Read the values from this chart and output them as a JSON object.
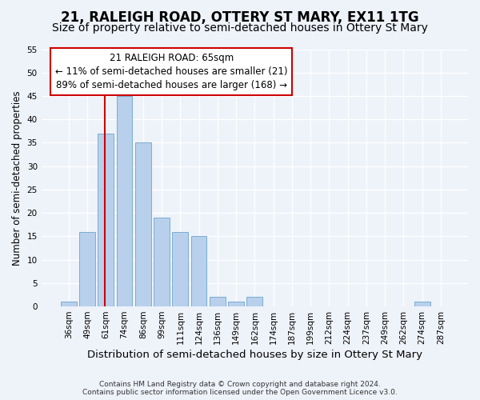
{
  "title": "21, RALEIGH ROAD, OTTERY ST MARY, EX11 1TG",
  "subtitle": "Size of property relative to semi-detached houses in Ottery St Mary",
  "xlabel": "Distribution of semi-detached houses by size in Ottery St Mary",
  "ylabel": "Number of semi-detached properties",
  "categories": [
    "36sqm",
    "49sqm",
    "61sqm",
    "74sqm",
    "86sqm",
    "99sqm",
    "111sqm",
    "124sqm",
    "136sqm",
    "149sqm",
    "162sqm",
    "174sqm",
    "187sqm",
    "199sqm",
    "212sqm",
    "224sqm",
    "237sqm",
    "249sqm",
    "262sqm",
    "274sqm",
    "287sqm"
  ],
  "values": [
    1,
    16,
    37,
    45,
    35,
    19,
    16,
    15,
    2,
    1,
    2,
    0,
    0,
    0,
    0,
    0,
    0,
    0,
    0,
    1,
    0
  ],
  "bar_color": "#b8d0eb",
  "bar_edge_color": "#7aadd4",
  "vline_color": "#cc0000",
  "vline_x": 1.95,
  "ylim": [
    0,
    55
  ],
  "yticks": [
    0,
    5,
    10,
    15,
    20,
    25,
    30,
    35,
    40,
    45,
    50,
    55
  ],
  "annotation_title": "21 RALEIGH ROAD: 65sqm",
  "annotation_line1": "← 11% of semi-detached houses are smaller (21)",
  "annotation_line2": "89% of semi-detached houses are larger (168) →",
  "annotation_box_color": "#ffffff",
  "annotation_box_edge": "#cc0000",
  "footnote1": "Contains HM Land Registry data © Crown copyright and database right 2024.",
  "footnote2": "Contains public sector information licensed under the Open Government Licence v3.0.",
  "background_color": "#eef2f9",
  "grid_color": "#ffffff",
  "title_fontsize": 12,
  "subtitle_fontsize": 10,
  "tick_fontsize": 7.5,
  "ylabel_fontsize": 8.5,
  "xlabel_fontsize": 9.5,
  "annotation_fontsize": 8.5,
  "footnote_fontsize": 6.5
}
